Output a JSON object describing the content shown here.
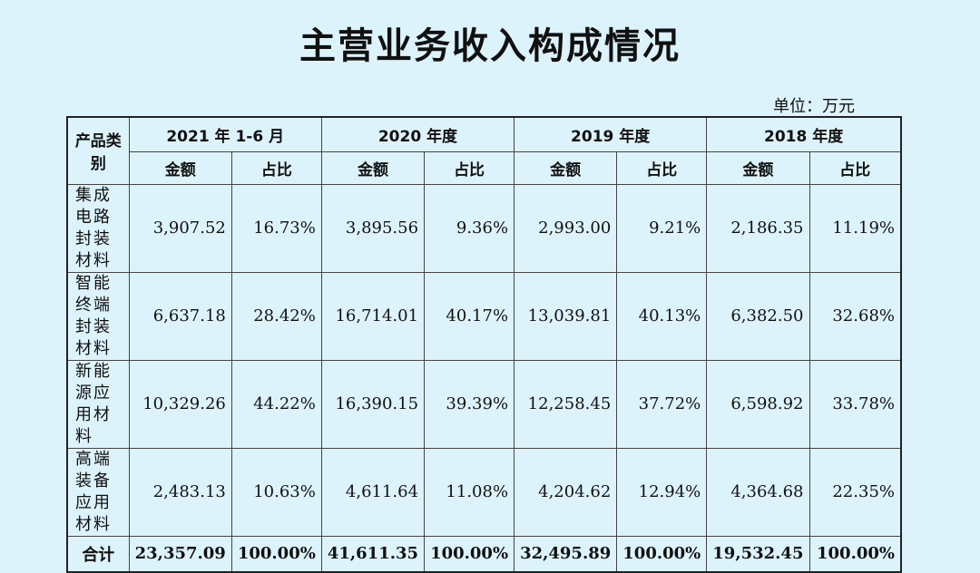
{
  "title": "主营业务收入构成情况",
  "unit": "单位：万元",
  "table": {
    "category_header": "产品类别",
    "years": [
      "2021 年 1-6 月",
      "2020 年度",
      "2019 年度",
      "2018 年度"
    ],
    "sub_headers": {
      "amount": "金额",
      "ratio": "占比"
    },
    "rows": [
      {
        "category": "集成电路封装材料",
        "cells": [
          "3,907.52",
          "16.73%",
          "3,895.56",
          "9.36%",
          "2,993.00",
          "9.21%",
          "2,186.35",
          "11.19%"
        ]
      },
      {
        "category": "智能终端封装材料",
        "cells": [
          "6,637.18",
          "28.42%",
          "16,714.01",
          "40.17%",
          "13,039.81",
          "40.13%",
          "6,382.50",
          "32.68%"
        ]
      },
      {
        "category": "新能源应用材料",
        "cells": [
          "10,329.26",
          "44.22%",
          "16,390.15",
          "39.39%",
          "12,258.45",
          "37.72%",
          "6,598.92",
          "33.78%"
        ]
      },
      {
        "category": "高端装备应用材料",
        "cells": [
          "2,483.13",
          "10.63%",
          "4,611.64",
          "11.08%",
          "4,204.62",
          "12.94%",
          "4,364.68",
          "22.35%"
        ]
      }
    ],
    "total": {
      "label": "合计",
      "cells": [
        "23,357.09",
        "100.00%",
        "41,611.35",
        "100.00%",
        "32,495.89",
        "100.00%",
        "19,532.45",
        "100.00%"
      ]
    }
  }
}
